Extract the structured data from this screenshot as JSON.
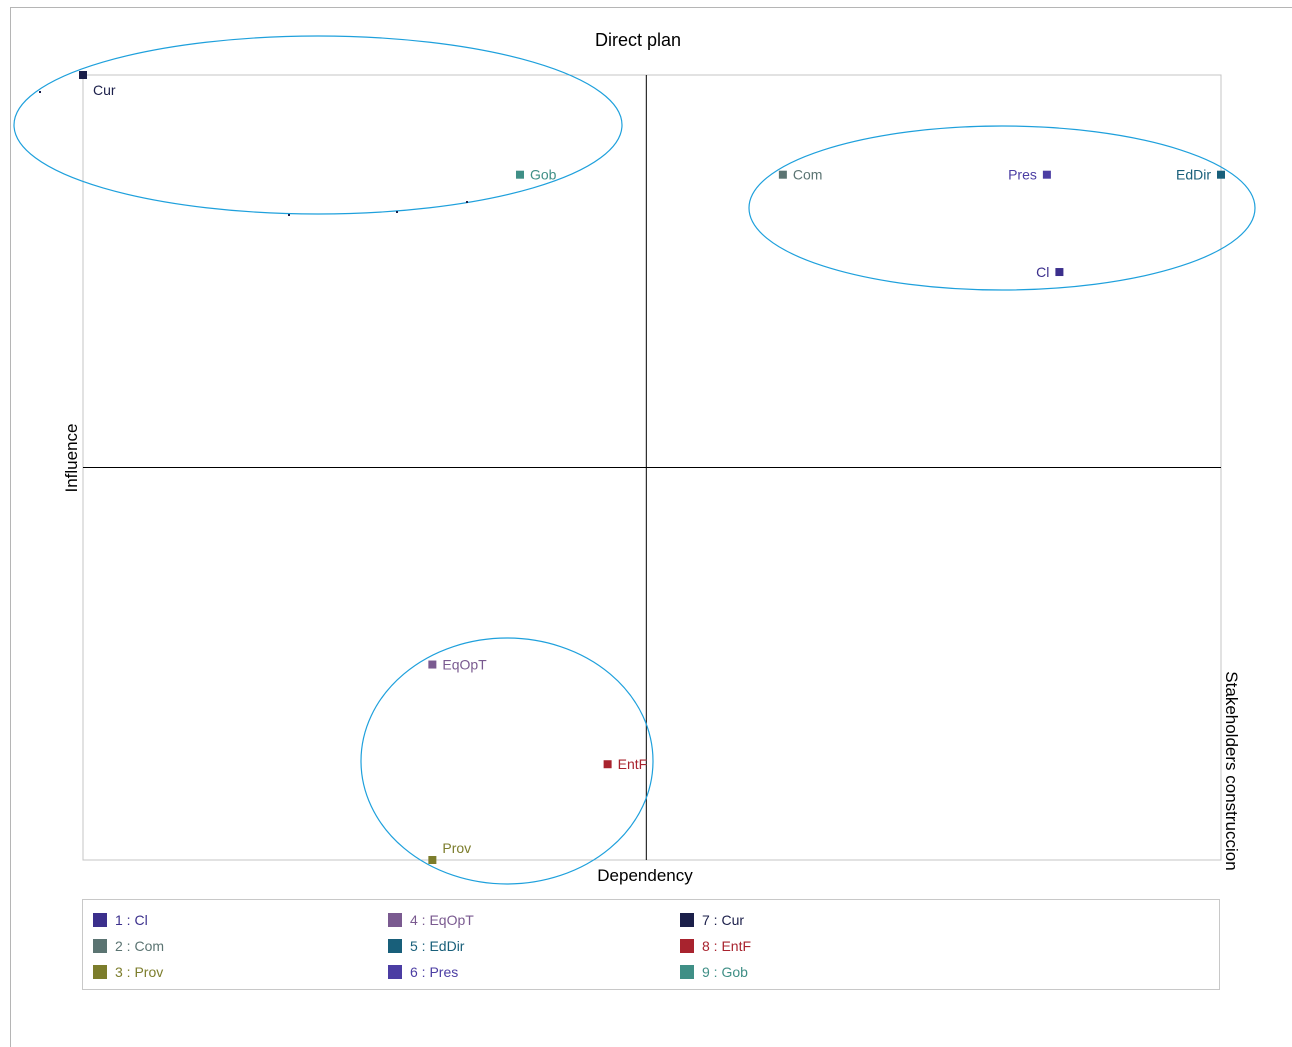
{
  "chart_data": {
    "type": "scatter",
    "title": "Direct plan",
    "xlabel": "Dependency",
    "ylabel": "Influence",
    "side_label": "Stakeholders construccion",
    "xlim": [
      0,
      1
    ],
    "ylim": [
      0,
      1
    ],
    "axis_cross": {
      "x": 0.495,
      "y": 0.5
    },
    "grid": false,
    "legend_position": "bottom",
    "points": [
      {
        "label": "Cl",
        "x": 0.858,
        "y": 0.749,
        "color": "#3b2f8c",
        "label_side": "left"
      },
      {
        "label": "Com",
        "x": 0.615,
        "y": 0.873,
        "color": "#5b7472",
        "label_side": "right"
      },
      {
        "label": "Prov",
        "x": 0.307,
        "y": 0.0,
        "color": "#7c7d2c",
        "label_side": "above-right"
      },
      {
        "label": "EqOpT",
        "x": 0.307,
        "y": 0.249,
        "color": "#7a5a90",
        "label_side": "right"
      },
      {
        "label": "EdDir",
        "x": 1.0,
        "y": 0.873,
        "color": "#185f7a",
        "label_side": "left"
      },
      {
        "label": "Pres",
        "x": 0.847,
        "y": 0.873,
        "color": "#4b3da3",
        "label_side": "left"
      },
      {
        "label": "Cur",
        "x": 0.0,
        "y": 1.0,
        "color": "#1b1f4a",
        "label_side": "below-right"
      },
      {
        "label": "EntF",
        "x": 0.461,
        "y": 0.122,
        "color": "#a8232e",
        "label_side": "right"
      },
      {
        "label": "Gob",
        "x": 0.384,
        "y": 0.873,
        "color": "#3f8f86",
        "label_side": "right"
      }
    ],
    "ellipse_color": "#1ea0dc"
  },
  "legend": {
    "items": [
      {
        "text": "1 : Cl",
        "color": "#3b2f8c"
      },
      {
        "text": "2 : Com",
        "color": "#5b7472"
      },
      {
        "text": "3 : Prov",
        "color": "#7c7d2c"
      },
      {
        "text": "4 : EqOpT",
        "color": "#7a5a90"
      },
      {
        "text": "5 : EdDir",
        "color": "#185f7a"
      },
      {
        "text": "6 : Pres",
        "color": "#4b3da3"
      },
      {
        "text": "7 : Cur",
        "color": "#1b1f4a"
      },
      {
        "text": "8 : EntF",
        "color": "#a8232e"
      },
      {
        "text": "9 : Gob",
        "color": "#3f8f86"
      }
    ]
  }
}
